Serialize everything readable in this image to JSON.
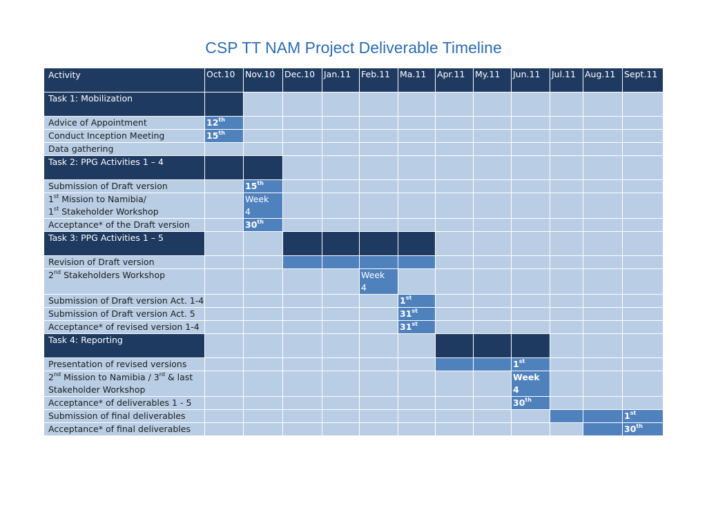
{
  "title": "CSP TT NAM Project Deliverable Timeline",
  "header": {
    "activity": "Activity",
    "months": [
      "Oct.10",
      "Nov.10",
      "Dec.10",
      "Jan.11",
      "Feb.11",
      "Ma.11",
      "Apr.11",
      "My.11",
      "Jun.11",
      "Jul.11",
      "Aug.11",
      "Sept.11"
    ]
  },
  "colors": {
    "dark": "#1f3a60",
    "light": "#b9cde4",
    "mid": "#4f81bd",
    "title": "#2b6cb3"
  },
  "rows": [
    {
      "type": "task",
      "label": "Task 1: Mobilization",
      "dark": [
        0
      ]
    },
    {
      "type": "item",
      "label": "Advice of Appointment",
      "mid": [
        0
      ],
      "marker": {
        "col": 0,
        "num": "12",
        "sup": "th",
        "bold": true
      }
    },
    {
      "type": "item",
      "label": "Conduct Inception  Meeting",
      "mid": [
        0
      ],
      "marker": {
        "col": 0,
        "num": "15",
        "sup": "th",
        "bold": true
      }
    },
    {
      "type": "item",
      "label": "Data gathering",
      "mid": []
    },
    {
      "type": "task",
      "label": "Task 2: PPG Activities 1 – 4",
      "dark": [
        0,
        1
      ]
    },
    {
      "type": "item",
      "label": "Submission of Draft version",
      "mid": [
        1
      ],
      "marker": {
        "col": 1,
        "num": "15",
        "sup": "th",
        "bold": true
      }
    },
    {
      "type": "item2",
      "label": "1",
      "label_sup": "st",
      "label_rest": " Mission to Namibia/",
      "label2": " 1",
      "label2_sup": "st",
      "label2_rest": " Stakeholder Workshop",
      "mid": [
        1
      ],
      "marker": {
        "col": 1,
        "line1": "Week",
        "line2": "4",
        "bold": false
      }
    },
    {
      "type": "item",
      "label": "Acceptance* of the Draft version",
      "mid": [
        1
      ],
      "marker": {
        "col": 1,
        "num": "30",
        "sup": "th",
        "bold": true
      }
    },
    {
      "type": "task",
      "label": "Task 3: PPG Activities 1 – 5",
      "dark": [
        2,
        3,
        4,
        5
      ]
    },
    {
      "type": "item",
      "label": "Revision of Draft version",
      "mid": [
        2,
        3,
        4,
        5
      ]
    },
    {
      "type": "item2",
      "label": "2",
      "label_sup": "nd",
      "label_rest": " Stakeholders Workshop",
      "label2": "",
      "label2_sup": "",
      "label2_rest": "",
      "mid": [
        4
      ],
      "marker": {
        "col": 4,
        "line1": "Week",
        "line2": "4",
        "bold": false
      }
    },
    {
      "type": "item",
      "label": "Submission of Draft version Act. 1-4",
      "mid": [
        5
      ],
      "marker": {
        "col": 5,
        "num": "1",
        "sup": "st",
        "bold": true
      }
    },
    {
      "type": "item",
      "label": "Submission of Draft version Act. 5",
      "mid": [
        5
      ],
      "marker": {
        "col": 5,
        "num": "31",
        "sup": "st",
        "bold": true
      }
    },
    {
      "type": "item",
      "label": "Acceptance* of revised version 1-4",
      "mid": [
        5
      ],
      "marker": {
        "col": 5,
        "num": "31",
        "sup": "st",
        "bold": true
      }
    },
    {
      "type": "task",
      "label": "Task 4: Reporting",
      "dark": [
        6,
        7,
        8
      ]
    },
    {
      "type": "item",
      "label": "Presentation of revised versions",
      "mid": [
        6,
        7,
        8
      ],
      "marker": {
        "col": 8,
        "num": "1",
        "sup": "st",
        "bold": true
      }
    },
    {
      "type": "item2",
      "label": "2",
      "label_sup": "nd",
      "label_rest": " Mission  to  Namibia  /  3",
      "label_sup2": "rd",
      "label_rest2": "  &  last",
      "label2": "Stakeholder Workshop",
      "label2_sup": "",
      "label2_rest": "",
      "mid": [
        8
      ],
      "marker": {
        "col": 8,
        "line1": "Week",
        "line2": "4",
        "bold": true
      }
    },
    {
      "type": "item",
      "label": "Acceptance* of deliverables 1 - 5",
      "mid": [
        8
      ],
      "marker": {
        "col": 8,
        "num": "30",
        "sup": "th",
        "bold": true
      }
    },
    {
      "type": "item",
      "label": "Submission of final deliverables",
      "mid": [
        9,
        10,
        11
      ],
      "marker": {
        "col": 11,
        "num": "1",
        "sup": "st",
        "bold": true
      }
    },
    {
      "type": "item",
      "label": "Acceptance* of final deliverables",
      "mid": [
        10,
        11
      ],
      "marker": {
        "col": 11,
        "num": "30",
        "sup": "th",
        "bold": true
      }
    }
  ]
}
